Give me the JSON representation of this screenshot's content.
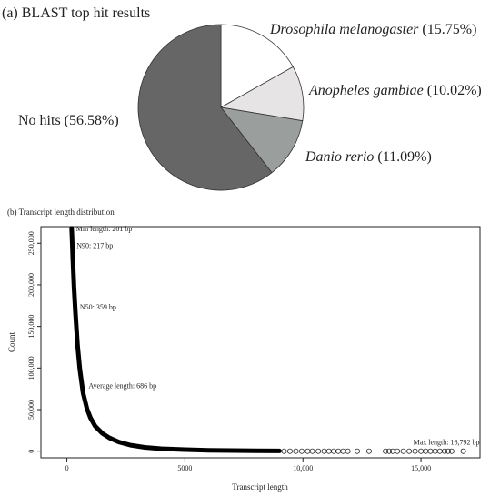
{
  "chart_data": [
    {
      "type": "pie",
      "title": "(a) BLAST top hit results",
      "slices": [
        {
          "species": "Drosophila melanogaster",
          "pct_label": "(15.75%)",
          "value": 15.75,
          "color": "#ffffff"
        },
        {
          "species": "Anopheles gambiae",
          "pct_label": "(10.02%)",
          "value": 10.02,
          "color": "#e6e4e4"
        },
        {
          "species": "Danio rerio",
          "pct_label": "(11.09%)",
          "value": 11.09,
          "color": "#9a9e9c"
        },
        {
          "species": "No hits",
          "pct_label": "(56.58%)",
          "value": 56.58,
          "color": "#666666"
        }
      ]
    },
    {
      "type": "scatter",
      "title": "(b) Transcript length distribution",
      "xlabel": "Transcript length",
      "ylabel": "Count",
      "xlim": [
        -1100,
        17500
      ],
      "ylim": [
        -8000,
        270000
      ],
      "x_ticks": [
        0,
        5000,
        10000,
        15000
      ],
      "x_tick_labels": [
        "0",
        "5000",
        "10,000",
        "15,000"
      ],
      "y_ticks": [
        0,
        50000,
        100000,
        150000,
        200000,
        250000
      ],
      "y_tick_labels": [
        "0",
        "50,000",
        "100,000",
        "150,000",
        "200,000",
        "250,000"
      ],
      "curve": {
        "x": [
          201,
          217,
          250,
          300,
          359,
          450,
          550,
          686,
          850,
          1000,
          1200,
          1500,
          1800,
          2200,
          2700,
          3300,
          4000,
          5000,
          6000,
          7000,
          8000,
          9000
        ],
        "y": [
          268000,
          258000,
          232000,
          198000,
          168000,
          128000,
          98000,
          70000,
          51000,
          40000,
          30000,
          21500,
          16000,
          11000,
          7200,
          4600,
          3000,
          1800,
          1100,
          700,
          450,
          300
        ]
      },
      "outliers_x": [
        9200,
        9450,
        9700,
        9950,
        10200,
        10400,
        10650,
        10900,
        11100,
        11300,
        11500,
        11700,
        11900,
        12300,
        12800,
        13500,
        13650,
        13800,
        14000,
        14250,
        14500,
        14750,
        15000,
        15200,
        15400,
        15600,
        15800,
        16000,
        16150,
        16300,
        16792
      ],
      "annotations": [
        {
          "text": "Min length: 201 bp",
          "x": 201,
          "y": 268000,
          "dx": 5,
          "dy": 3
        },
        {
          "text": "N90: 217 bp",
          "x": 217,
          "y": 242000,
          "dx": 5,
          "dy": -2
        },
        {
          "text": "N50: 359 bp",
          "x": 359,
          "y": 168000,
          "dx": 5,
          "dy": -2
        },
        {
          "text": "Average length: 686 bp",
          "x": 686,
          "y": 70000,
          "dx": 6,
          "dy": -5
        },
        {
          "text": "Max length: 16,792 bp",
          "x": 16792,
          "y": 0,
          "dx": -55,
          "dy": -7
        }
      ]
    }
  ]
}
